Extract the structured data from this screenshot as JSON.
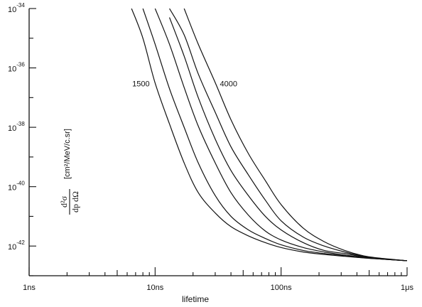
{
  "chart_data": {
    "type": "line",
    "xscale": "log",
    "yscale": "log",
    "xlim": [
      1e-09,
      1e-06
    ],
    "ylim": [
      1e-43,
      1e-34
    ],
    "grid": false,
    "xlabel": "lifetime",
    "ylabel": {
      "numerator": "d²σ",
      "denominator": "dp dΩ",
      "unit": "[cm²/MeV/c.sr]"
    },
    "x_ticks": [
      {
        "value": 1e-09,
        "label": "1ns"
      },
      {
        "value": 1e-08,
        "label": "10ns"
      },
      {
        "value": 1e-07,
        "label": "100ns"
      },
      {
        "value": 1e-06,
        "label": "1μs"
      }
    ],
    "y_ticks": [
      {
        "value": 1e-34,
        "base": "10",
        "exp": "-34"
      },
      {
        "value": 1e-36,
        "base": "10",
        "exp": "-36"
      },
      {
        "value": 1e-38,
        "base": "10",
        "exp": "-38"
      },
      {
        "value": 1e-40,
        "base": "10",
        "exp": "-40"
      },
      {
        "value": 1e-42,
        "base": "10",
        "exp": "-42"
      }
    ],
    "x": [
      6.5e-09,
      8e-09,
      1e-08,
      1.3e-08,
      1.7e-08,
      2.2e-08,
      3e-08,
      4e-08,
      5.5e-08,
      7.5e-08,
      1e-07,
      1.5e-07,
      2.2e-07,
      3.2e-07,
      4.5e-07,
      6.5e-07,
      1e-06
    ],
    "annotations": [
      {
        "text": "1500",
        "series_index": 0
      },
      {
        "text": "4000",
        "series_index": 5
      }
    ],
    "series": [
      {
        "values": [
          1e-34,
          1e-35,
          3.1e-37,
          1.3e-38,
          6.3e-40,
          6.3e-41,
          1.3e-41,
          4.5e-42,
          2.2e-42,
          1.3e-42,
          8.9e-43,
          6.3e-43,
          5.2e-43,
          4.5e-43,
          4e-43,
          3.6e-43,
          3.2e-43
        ]
      },
      {
        "values": [
          null,
          1e-34,
          6.3e-36,
          2e-37,
          1e-38,
          6.3e-40,
          5e-41,
          1e-41,
          3.5e-42,
          1.8e-42,
          1.1e-42,
          7.1e-43,
          5.6e-43,
          4.7e-43,
          4e-43,
          3.6e-43,
          3.2e-43
        ]
      },
      {
        "values": [
          null,
          null,
          1e-34,
          6.3e-36,
          2.2e-37,
          1.1e-38,
          6.3e-40,
          6.3e-41,
          1.1e-41,
          3.2e-42,
          1.6e-42,
          8.9e-43,
          6.3e-43,
          5e-43,
          4.1e-43,
          3.6e-43,
          3.2e-43
        ]
      },
      {
        "values": [
          null,
          null,
          null,
          5e-35,
          2.5e-36,
          1e-37,
          4e-39,
          3.5e-40,
          5e-41,
          1e-41,
          3.5e-42,
          1.3e-42,
          7.1e-43,
          5.6e-43,
          4.3e-43,
          3.7e-43,
          3.2e-43
        ]
      },
      {
        "values": [
          null,
          null,
          null,
          1e-34,
          1.3e-35,
          6.3e-37,
          3.2e-38,
          2.2e-39,
          2.5e-40,
          3.5e-41,
          7.1e-42,
          2e-42,
          1e-42,
          6.3e-43,
          4.5e-43,
          3.7e-43,
          3.2e-43
        ]
      },
      {
        "values": [
          null,
          null,
          null,
          null,
          1e-34,
          6.3e-36,
          3.2e-37,
          1.8e-38,
          1.3e-39,
          1.6e-40,
          2.5e-41,
          4e-42,
          1.4e-42,
          7.1e-43,
          4.7e-43,
          3.8e-43,
          3.2e-43
        ]
      }
    ]
  }
}
